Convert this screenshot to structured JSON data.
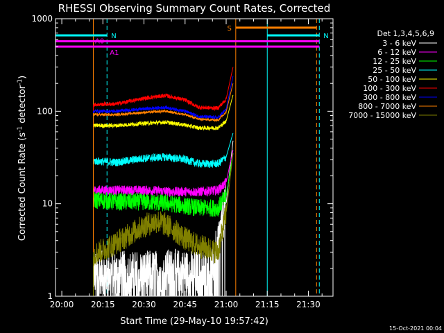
{
  "chart_data": {
    "type": "line",
    "title": "RHESSI Observing Summary Count Rates, Corrected",
    "xlabel": "Start Time (29-May-10 19:57:42)",
    "ylabel_parts": [
      "Corrected Count Rate (s",
      "-1",
      " detector",
      "-1",
      ")"
    ],
    "y_scale": "log",
    "ylim": [
      1,
      1000
    ],
    "xlim": [
      "19:57:42",
      "21:39:00"
    ],
    "x_ticks": [
      "20:00",
      "20:15",
      "20:30",
      "20:45",
      "21:00",
      "21:15",
      "21:30"
    ],
    "y_ticks": [
      "1",
      "10",
      "100",
      "1000"
    ],
    "data_gaps": [
      [
        "19:57:42",
        "20:11:30"
      ],
      [
        "21:03:30",
        "21:39:00"
      ]
    ],
    "legend": {
      "position": "right",
      "header": "Det 1,3,4,5,6,9"
    },
    "series": [
      {
        "name": "3 - 6 keV",
        "color": "#ffffff",
        "points": [
          [
            "20:11:30",
            1.8
          ],
          [
            "20:20:00",
            1.8
          ],
          [
            "20:30:00",
            1.8
          ],
          [
            "20:40:00",
            1.9
          ],
          [
            "20:50:00",
            1.8
          ],
          [
            "20:55:00",
            2.0
          ],
          [
            "21:00:00",
            10
          ],
          [
            "21:02:30",
            48
          ]
        ]
      },
      {
        "name": "6 - 12 keV",
        "color": "#ff00ff",
        "points": [
          [
            "20:11:30",
            14
          ],
          [
            "20:20:00",
            14
          ],
          [
            "20:30:00",
            14
          ],
          [
            "20:40:00",
            13.5
          ],
          [
            "20:50:00",
            13.5
          ],
          [
            "20:57:00",
            14
          ],
          [
            "21:00:00",
            17
          ],
          [
            "21:02:30",
            38
          ]
        ]
      },
      {
        "name": "12 - 25 keV",
        "color": "#00ff00",
        "points": [
          [
            "20:11:30",
            11
          ],
          [
            "20:20:00",
            10.5
          ],
          [
            "20:30:00",
            10.5
          ],
          [
            "20:40:00",
            10
          ],
          [
            "20:50:00",
            9
          ],
          [
            "20:57:00",
            9
          ],
          [
            "21:00:00",
            12
          ],
          [
            "21:02:30",
            35
          ]
        ]
      },
      {
        "name": "25 - 50 keV",
        "color": "#00ffff",
        "points": [
          [
            "20:11:30",
            29
          ],
          [
            "20:20:00",
            28
          ],
          [
            "20:30:00",
            31
          ],
          [
            "20:38:00",
            32
          ],
          [
            "20:45:00",
            30
          ],
          [
            "20:50:00",
            27
          ],
          [
            "20:57:00",
            27
          ],
          [
            "21:00:00",
            32
          ],
          [
            "21:02:30",
            58
          ]
        ]
      },
      {
        "name": "50 - 100 keV",
        "color": "#ffff00",
        "points": [
          [
            "20:11:30",
            70
          ],
          [
            "20:20:00",
            70
          ],
          [
            "20:30:00",
            74
          ],
          [
            "20:38:00",
            76
          ],
          [
            "20:45:00",
            71
          ],
          [
            "20:50:00",
            66
          ],
          [
            "20:57:00",
            66
          ],
          [
            "21:00:00",
            78
          ],
          [
            "21:02:30",
            150
          ]
        ]
      },
      {
        "name": "100 - 300 keV",
        "color": "#ff0000",
        "points": [
          [
            "20:11:30",
            118
          ],
          [
            "20:20:00",
            120
          ],
          [
            "20:30:00",
            138
          ],
          [
            "20:38:00",
            148
          ],
          [
            "20:45:00",
            132
          ],
          [
            "20:50:00",
            110
          ],
          [
            "20:57:00",
            108
          ],
          [
            "21:00:00",
            135
          ],
          [
            "21:02:30",
            300
          ]
        ]
      },
      {
        "name": "300 - 800 keV",
        "color": "#0000ff",
        "points": [
          [
            "20:11:30",
            100
          ],
          [
            "20:20:00",
            100
          ],
          [
            "20:30:00",
            106
          ],
          [
            "20:38:00",
            110
          ],
          [
            "20:45:00",
            100
          ],
          [
            "20:50:00",
            88
          ],
          [
            "20:57:00",
            85
          ],
          [
            "21:00:00",
            105
          ],
          [
            "21:02:30",
            240
          ]
        ]
      },
      {
        "name": "800 - 7000 keV",
        "color": "#ff8000",
        "points": [
          [
            "20:11:30",
            92
          ],
          [
            "20:20:00",
            92
          ],
          [
            "20:30:00",
            97
          ],
          [
            "20:38:00",
            100
          ],
          [
            "20:45:00",
            92
          ],
          [
            "20:50:00",
            82
          ],
          [
            "20:57:00",
            80
          ],
          [
            "21:00:00",
            98
          ],
          [
            "21:02:30",
            200
          ]
        ]
      },
      {
        "name": "7000 - 15000 keV",
        "color": "#808000",
        "points": [
          [
            "20:11:30",
            2.8
          ],
          [
            "20:20:00",
            3.8
          ],
          [
            "20:30:00",
            5.8
          ],
          [
            "20:35:00",
            6.5
          ],
          [
            "20:40:00",
            5.5
          ],
          [
            "20:45:00",
            4.2
          ],
          [
            "20:50:00",
            3.5
          ],
          [
            "20:57:00",
            3.0
          ],
          [
            "21:00:00",
            8
          ],
          [
            "21:02:30",
            35
          ]
        ]
      }
    ],
    "flag_bars": [
      {
        "label": "N",
        "color": "#00ffff",
        "y": 660,
        "start": "19:57:42",
        "end": "20:16:30"
      },
      {
        "label": "N",
        "color": "#00ffff",
        "y": 660,
        "start": "21:15:00",
        "end": "21:34:00"
      },
      {
        "label": "S",
        "color": "#ff8000",
        "y": 800,
        "start": "21:03:30",
        "end": "21:33:00"
      },
      {
        "label": "A0",
        "color": "#ff00ff",
        "y": 570,
        "start": "19:57:42",
        "end": "21:34:00"
      },
      {
        "label": "A1",
        "color": "#ff00ff",
        "y": 500,
        "start": "19:57:42",
        "end": "21:34:00"
      }
    ],
    "vertical_markers": [
      {
        "time": "19:57:42",
        "color": "#00ffff",
        "style": "solid"
      },
      {
        "time": "20:11:30",
        "color": "#ff8000",
        "style": "solid"
      },
      {
        "time": "20:16:30",
        "color": "#00ffff",
        "style": "dashed"
      },
      {
        "time": "21:03:30",
        "color": "#ff8000",
        "style": "solid"
      },
      {
        "time": "21:15:00",
        "color": "#00ffff",
        "style": "solid"
      },
      {
        "time": "21:33:00",
        "color": "#ff8000",
        "style": "dashed"
      },
      {
        "time": "21:34:00",
        "color": "#00ffff",
        "style": "dashed"
      }
    ],
    "footer_timestamp": "15-Oct-2021 00:04"
  }
}
